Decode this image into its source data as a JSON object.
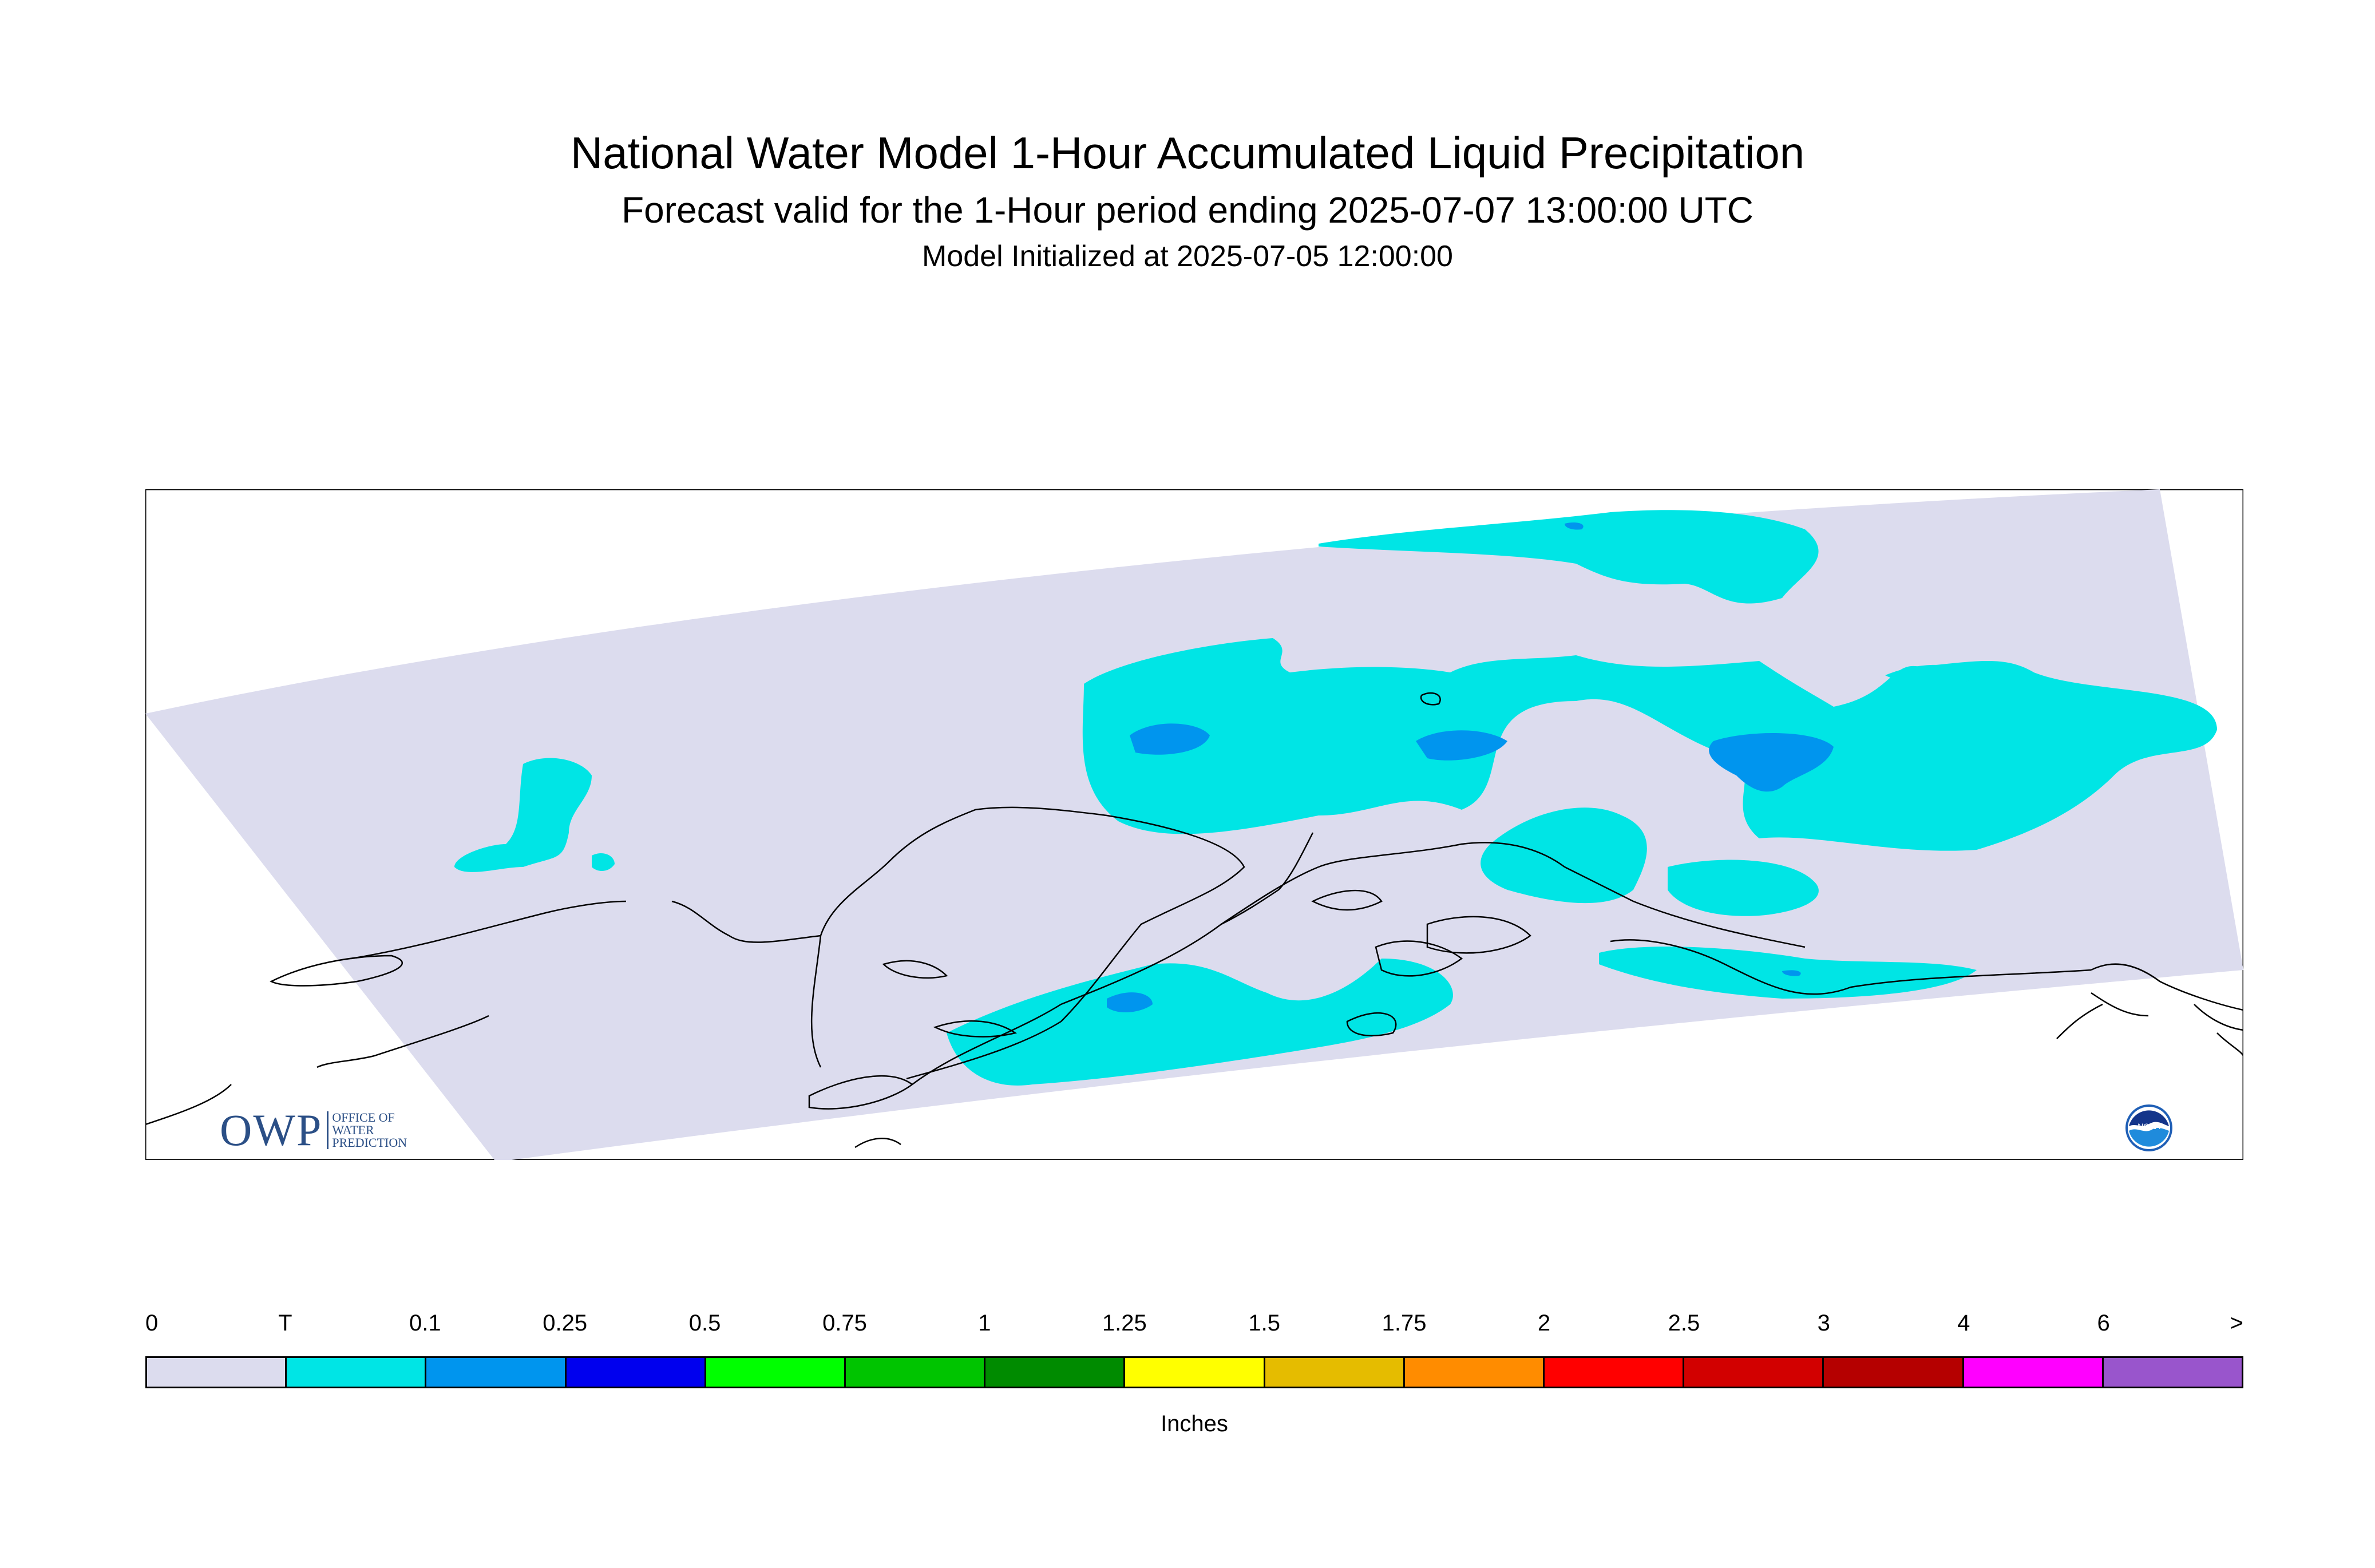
{
  "title": "National Water Model 1-Hour Accumulated Liquid Precipitation",
  "subtitle": "Forecast valid for the 1-Hour period ending 2025-07-07 13:00:00 UTC",
  "init_line": "Model Initialized at 2025-07-05 12:00:00",
  "legend": {
    "unit": "Inches",
    "ticks": [
      "0",
      "T",
      "0.1",
      "0.25",
      "0.5",
      "0.75",
      "1",
      "1.25",
      "1.5",
      "1.75",
      "2",
      "2.5",
      "3",
      "4",
      "6",
      ">"
    ],
    "colors": [
      "#dcdcee",
      "#00e5e5",
      "#0095ee",
      "#0000ee",
      "#00ff00",
      "#00c400",
      "#008b00",
      "#ffff00",
      "#e5bc00",
      "#ff8c00",
      "#ff0000",
      "#d20000",
      "#b50000",
      "#ff00ff",
      "#9955cc"
    ]
  },
  "logos": {
    "owp_text": "OWP",
    "owp_sub": [
      "OFFICE OF",
      "WATER",
      "PREDICTION"
    ],
    "noaa_text": "NOAA"
  },
  "colors": {
    "no_precip": "#dcdcee",
    "trace": "#00e5e5",
    "light": "#0095ee",
    "coastline": "#000000",
    "frame": "#000000"
  }
}
